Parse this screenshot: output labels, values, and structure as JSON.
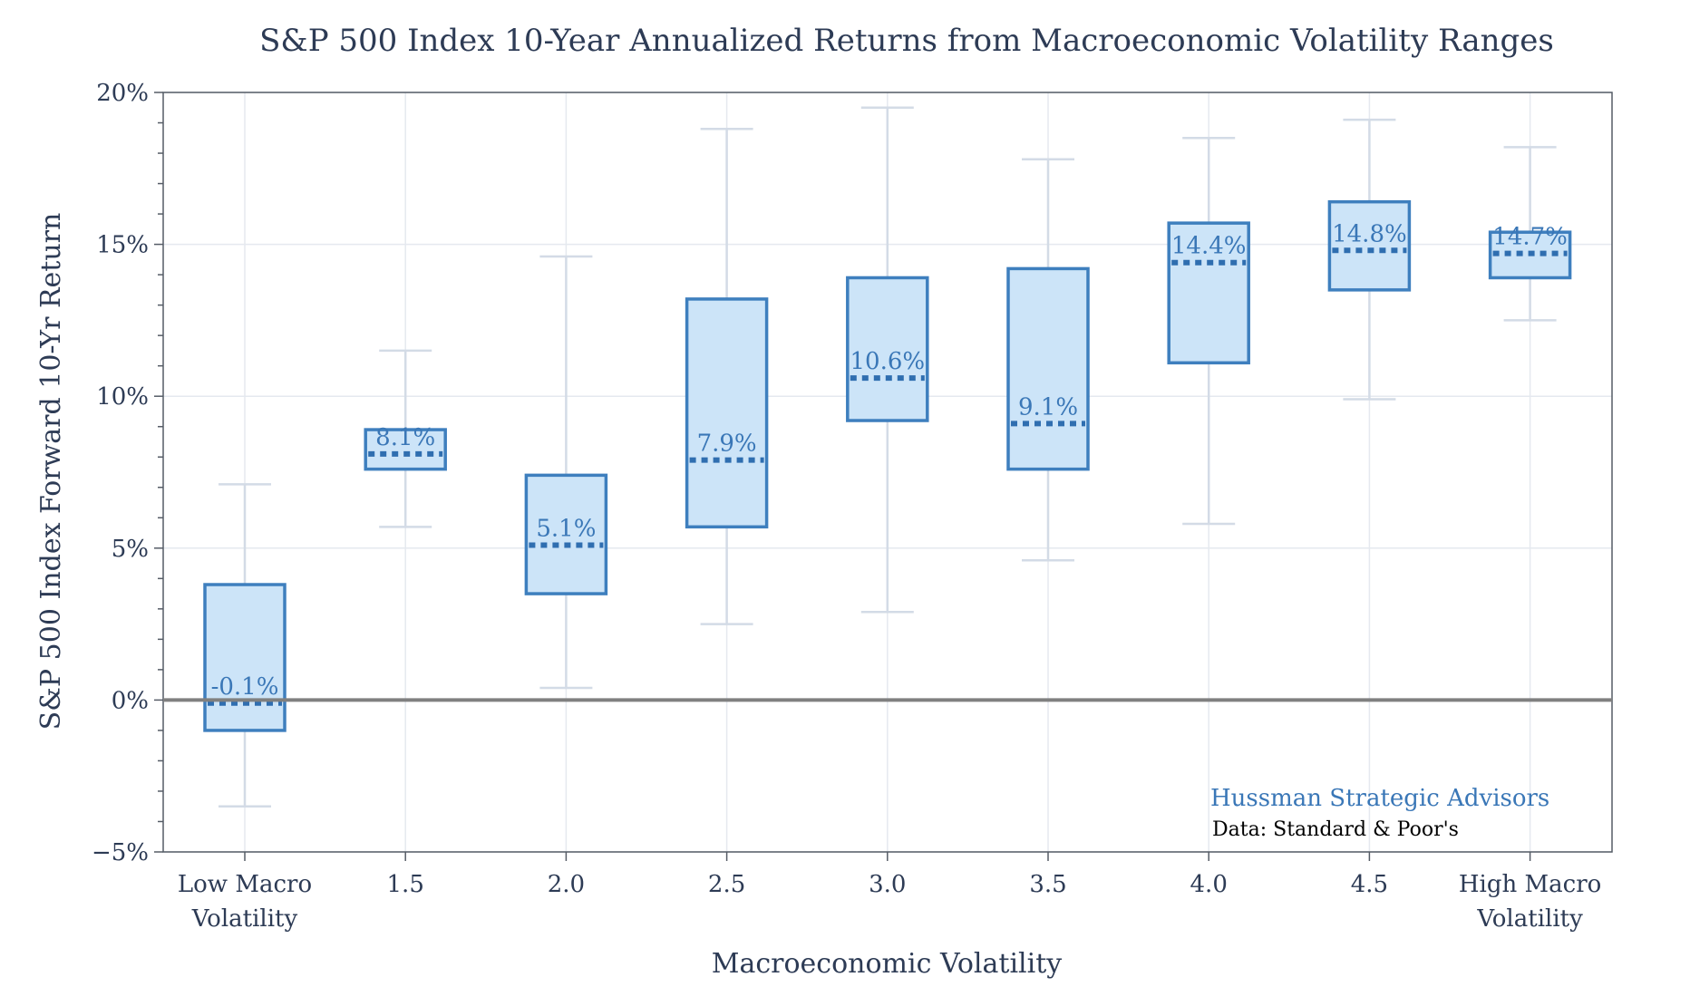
{
  "chart_data": {
    "type": "box",
    "title": "S&P 500 Index 10-Year Annualized Returns from Macroeconomic Volatility Ranges",
    "xlabel": "Macroeconomic Volatility",
    "ylabel": "S&P 500 Index Forward 10-Yr Return",
    "ylim": [
      -5,
      20
    ],
    "yticks": [
      -5,
      0,
      5,
      10,
      15,
      20
    ],
    "ytick_labels": [
      "−5%",
      "0%",
      "5%",
      "10%",
      "15%",
      "20%"
    ],
    "grid": true,
    "categories": [
      {
        "lines": [
          "Low Macro",
          "Volatility"
        ]
      },
      {
        "lines": [
          "1.5"
        ]
      },
      {
        "lines": [
          "2.0"
        ]
      },
      {
        "lines": [
          "2.5"
        ]
      },
      {
        "lines": [
          "3.0"
        ]
      },
      {
        "lines": [
          "3.5"
        ]
      },
      {
        "lines": [
          "4.0"
        ]
      },
      {
        "lines": [
          "4.5"
        ]
      },
      {
        "lines": [
          "High Macro",
          "Volatility"
        ]
      }
    ],
    "boxes": [
      {
        "min": -3.5,
        "q1": -1.0,
        "median": -0.1,
        "q3": 3.8,
        "max": 7.1,
        "label": "-0.1%"
      },
      {
        "min": 5.7,
        "q1": 7.6,
        "median": 8.1,
        "q3": 8.9,
        "max": 11.5,
        "label": "8.1%"
      },
      {
        "min": 0.4,
        "q1": 3.5,
        "median": 5.1,
        "q3": 7.4,
        "max": 14.6,
        "label": "5.1%"
      },
      {
        "min": 2.5,
        "q1": 5.7,
        "median": 7.9,
        "q3": 13.2,
        "max": 18.8,
        "label": "7.9%"
      },
      {
        "min": 2.9,
        "q1": 9.2,
        "median": 10.6,
        "q3": 13.9,
        "max": 19.5,
        "label": "10.6%"
      },
      {
        "min": 4.6,
        "q1": 7.6,
        "median": 9.1,
        "q3": 14.2,
        "max": 17.8,
        "label": "9.1%"
      },
      {
        "min": 5.8,
        "q1": 11.1,
        "median": 14.4,
        "q3": 15.7,
        "max": 18.5,
        "label": "14.4%"
      },
      {
        "min": 9.9,
        "q1": 13.5,
        "median": 14.8,
        "q3": 16.4,
        "max": 19.1,
        "label": "14.8%"
      },
      {
        "min": 12.5,
        "q1": 13.9,
        "median": 14.7,
        "q3": 15.4,
        "max": 18.2,
        "label": "14.7%"
      }
    ],
    "annotations": {
      "source_org": "Hussman Strategic Advisors",
      "source_data": "Data: Standard & Poor's"
    },
    "colors": {
      "box_fill": "#cce4f8",
      "box_stroke": "#3e7fbe",
      "median": "#2f6eb0",
      "zero_line": "#808080",
      "whisker": "#d3dbe6"
    }
  }
}
